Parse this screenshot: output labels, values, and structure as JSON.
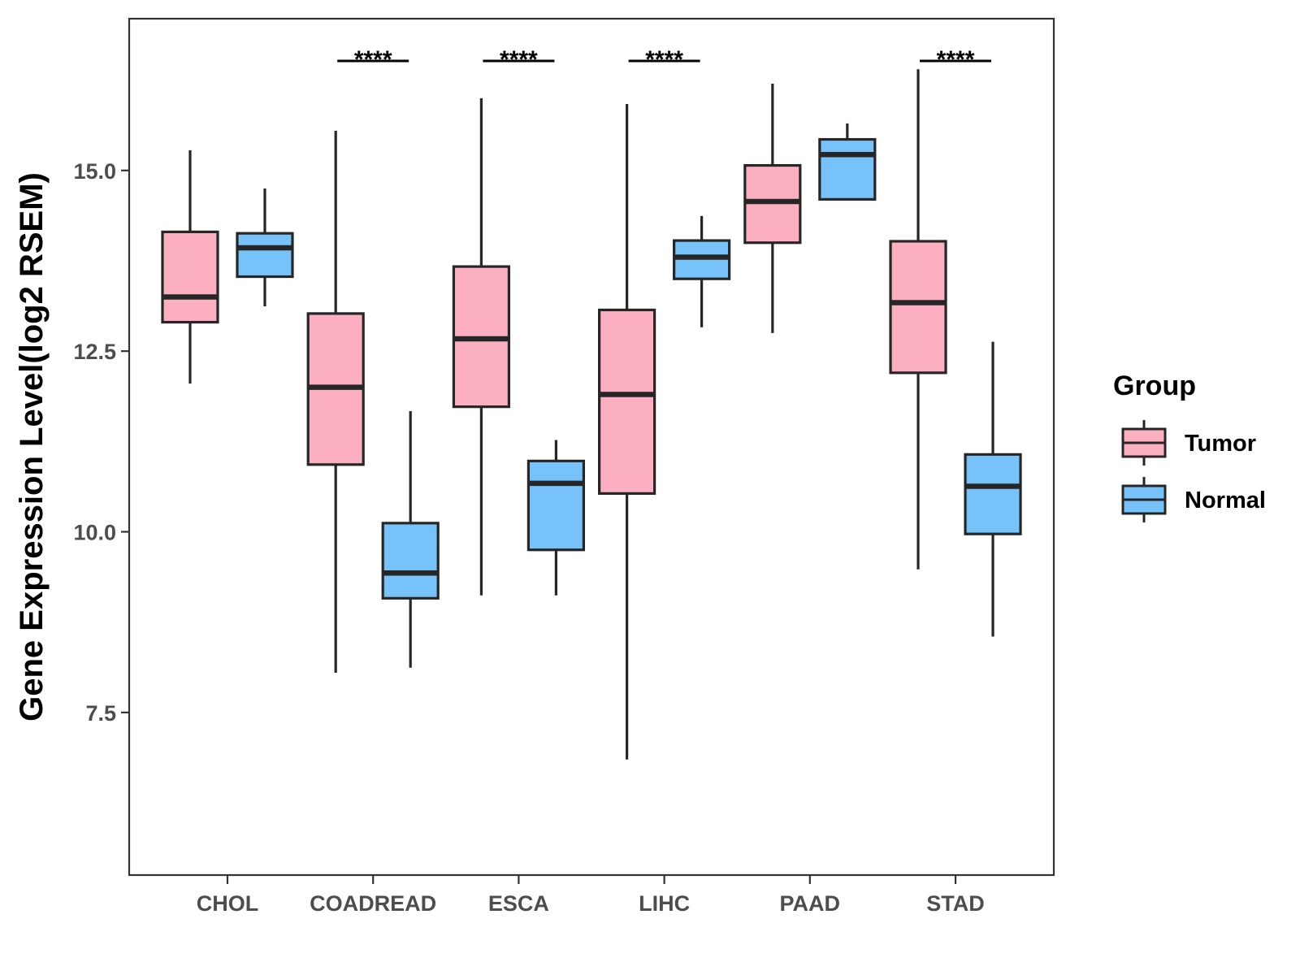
{
  "chart_data": {
    "type": "boxplot",
    "title": "",
    "xlabel": "",
    "ylabel": "Gene Expression Level(log2 RSEM)",
    "ylim": [
      5.25,
      17.1
    ],
    "yticks": [
      7.5,
      10.0,
      12.5,
      15.0
    ],
    "ytick_labels": [
      "7.5",
      "10.0",
      "12.5",
      "15.0"
    ],
    "categories": [
      "CHOL",
      "COADREAD",
      "ESCA",
      "LIHC",
      "PAAD",
      "STAD"
    ],
    "series": [
      {
        "name": "Tumor",
        "color": "#FBAFC1",
        "boxes": [
          {
            "min": 12.05,
            "q1": 12.9,
            "median": 13.25,
            "q3": 14.15,
            "max": 15.28
          },
          {
            "min": 8.05,
            "q1": 10.93,
            "median": 12.0,
            "q3": 13.02,
            "max": 15.55
          },
          {
            "min": 9.12,
            "q1": 11.73,
            "median": 12.67,
            "q3": 13.67,
            "max": 16.0
          },
          {
            "min": 6.85,
            "q1": 10.53,
            "median": 11.9,
            "q3": 13.07,
            "max": 15.92
          },
          {
            "min": 12.75,
            "q1": 14.0,
            "median": 14.57,
            "q3": 15.07,
            "max": 16.2
          },
          {
            "min": 9.48,
            "q1": 12.2,
            "median": 13.17,
            "q3": 14.02,
            "max": 16.4
          }
        ]
      },
      {
        "name": "Normal",
        "color": "#77C3F9",
        "boxes": [
          {
            "min": 13.12,
            "q1": 13.53,
            "median": 13.93,
            "q3": 14.13,
            "max": 14.75
          },
          {
            "min": 8.12,
            "q1": 9.08,
            "median": 9.43,
            "q3": 10.12,
            "max": 11.67
          },
          {
            "min": 9.12,
            "q1": 9.75,
            "median": 10.67,
            "q3": 10.98,
            "max": 11.27
          },
          {
            "min": 12.83,
            "q1": 13.5,
            "median": 13.8,
            "q3": 14.03,
            "max": 14.37
          },
          {
            "min": 14.6,
            "q1": 14.6,
            "median": 15.22,
            "q3": 15.43,
            "max": 15.65
          },
          {
            "min": 8.55,
            "q1": 9.97,
            "median": 10.63,
            "q3": 11.07,
            "max": 12.63
          }
        ]
      }
    ],
    "significance": [
      "",
      "****",
      "****",
      "****",
      "",
      "****"
    ],
    "legend": {
      "title": "Group",
      "position": "right",
      "entries": [
        "Tumor",
        "Normal"
      ]
    }
  }
}
